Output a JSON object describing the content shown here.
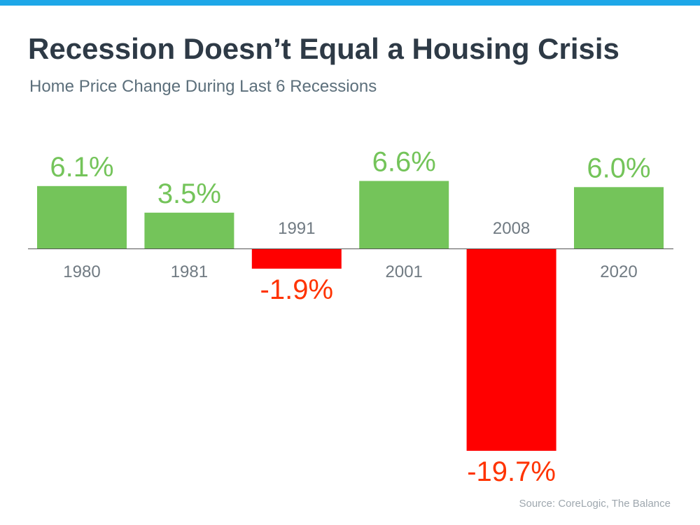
{
  "header": {
    "title": "Recession Doesn’t Equal a Housing Crisis",
    "subtitle": "Home Price Change During Last 6 Recessions"
  },
  "footer": {
    "source": "Source: CoreLogic, The Balance"
  },
  "colors": {
    "top_bar": "#1ea7e8",
    "positive": "#74c45a",
    "negative": "#ff0000",
    "negative_label": "#ff3300",
    "category_label": "#707a82",
    "baseline": "#555555"
  },
  "chart_data": {
    "type": "bar",
    "categories": [
      "1980",
      "1981",
      "1991",
      "2001",
      "2008",
      "2020"
    ],
    "values": [
      6.1,
      3.5,
      -1.9,
      6.6,
      -19.7,
      6.0
    ],
    "data_labels": [
      "6.1%",
      "3.5%",
      "-1.9%",
      "6.6%",
      "-19.7%",
      "6.0%"
    ],
    "title": "Recession Doesn’t Equal a Housing Crisis",
    "subtitle": "Home Price Change During Last 6 Recessions",
    "xlabel": "",
    "ylabel": "",
    "grid": false,
    "legend": "none"
  }
}
